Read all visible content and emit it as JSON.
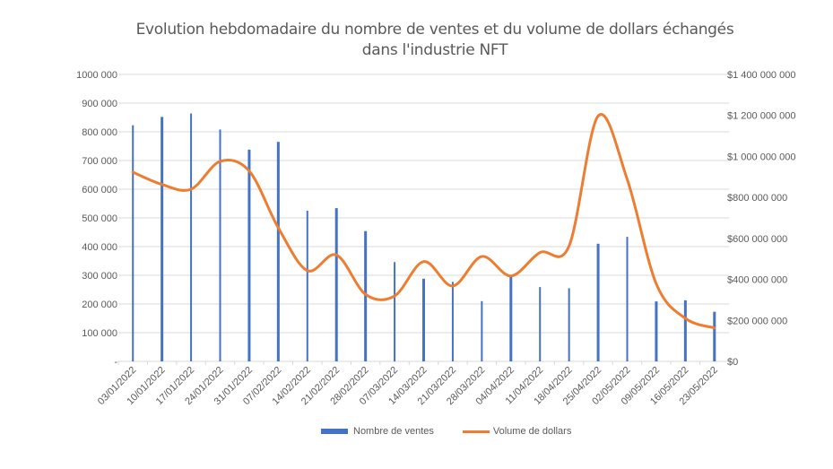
{
  "chart": {
    "title_line1": "Evolution hebdomadaire du nombre de ventes et du volume de dollars échangés",
    "title_line2": "dans l'industrie NFT",
    "legend": {
      "bars_label": "Nombre de ventes",
      "line_label": "Volume de dollars"
    },
    "colors": {
      "bars": "#4472C4",
      "line": "#ED7D31",
      "grid": "#D9D9D9",
      "text": "#595959"
    },
    "left_axis_ticks": [
      "-",
      "100 000",
      "200 000",
      "300 000",
      "400 000",
      "500 000",
      "600 000",
      "700 000",
      "800 000",
      "900 000",
      "1000 000"
    ],
    "right_axis_ticks": [
      "$0",
      "$200 000 000",
      "$400 000 000",
      "$600 000 000",
      "$800 000 000",
      "$1 000 000 000",
      "$1 200 000 000",
      "$1 400 000 000"
    ]
  },
  "chart_data": {
    "type": "bar+line",
    "title": "Evolution hebdomadaire du nombre de ventes et du volume de dollars échangés dans l'industrie NFT",
    "xlabel": "",
    "ylabel": "",
    "y2label": "",
    "categories": [
      "03/01/2022",
      "10/01/2022",
      "17/01/2022",
      "24/01/2022",
      "31/01/2022",
      "07/02/2022",
      "14/02/2022",
      "21/02/2022",
      "28/02/2022",
      "07/03/2022",
      "14/03/2022",
      "21/03/2022",
      "28/03/2022",
      "04/04/2022",
      "11/04/2022",
      "18/04/2022",
      "25/04/2022",
      "02/05/2022",
      "09/05/2022",
      "16/05/2022",
      "23/05/2022"
    ],
    "series": [
      {
        "name": "Nombre de ventes",
        "type": "bar",
        "axis": "left",
        "values": [
          823000,
          852000,
          864000,
          808000,
          738000,
          765000,
          525000,
          534000,
          454000,
          346000,
          288000,
          277000,
          210000,
          296000,
          259000,
          255000,
          410000,
          434000,
          209000,
          213000,
          173000
        ]
      },
      {
        "name": "Volume de dollars",
        "type": "line",
        "smooth": true,
        "axis": "right",
        "values": [
          923000000,
          863000000,
          840000000,
          976000000,
          929000000,
          652000000,
          443000000,
          519000000,
          327000000,
          319000000,
          487000000,
          368000000,
          512000000,
          417000000,
          531000000,
          563000000,
          1197000000,
          888000000,
          378000000,
          210000000,
          163000000
        ]
      }
    ],
    "ylim": [
      0,
      1000000
    ],
    "y2lim": [
      0,
      1400000000
    ],
    "grid": true,
    "legend_position": "bottom"
  }
}
